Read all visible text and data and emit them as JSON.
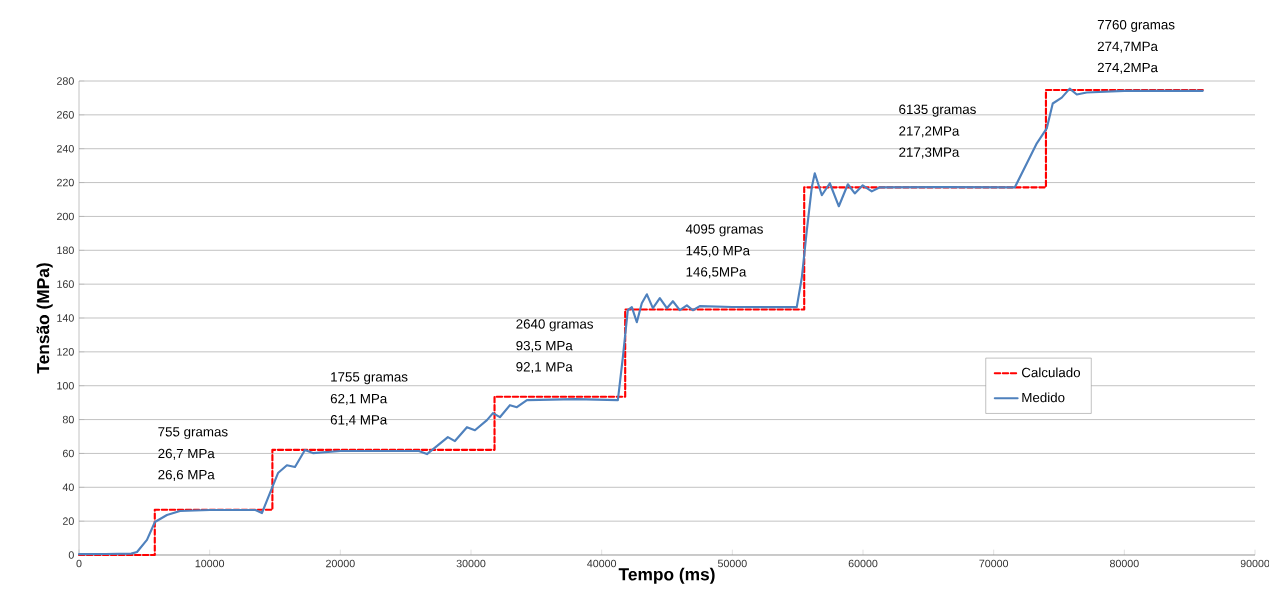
{
  "chart_data": {
    "type": "line",
    "xlabel": "Tempo (ms)",
    "ylabel": "Tensão (MPa)",
    "xlim": [
      0,
      90000
    ],
    "xticks": [
      0,
      10000,
      20000,
      30000,
      40000,
      50000,
      60000,
      70000,
      80000,
      90000
    ],
    "ylim": [
      0,
      280
    ],
    "yticks": [
      0,
      20,
      40,
      60,
      80,
      100,
      120,
      140,
      160,
      180,
      200,
      220,
      240,
      260,
      280
    ],
    "grid": "y",
    "legend": "right",
    "marker": "none",
    "series": [
      {
        "name": "Calculado",
        "type": "step",
        "color": "#ff0000",
        "line_style": "dashed",
        "x": [
          0,
          5800,
          14800,
          31800,
          41800,
          55500,
          74000,
          86000
        ],
        "values": [
          0,
          26.7,
          62.1,
          93.5,
          145.0,
          217.2,
          274.7,
          274.7
        ]
      },
      {
        "name": "Medido",
        "color": "#4f81bd",
        "line_style": "solid",
        "x": [
          0,
          2000,
          4000,
          4440,
          5200,
          5810,
          6730,
          7730,
          10000,
          13500,
          14000,
          14610,
          15230,
          15910,
          16530,
          17290,
          17900,
          20000,
          26000,
          26630,
          28230,
          28770,
          29690,
          30300,
          31220,
          31680,
          32210,
          32980,
          33510,
          34280,
          38000,
          41240,
          41620,
          42000,
          42310,
          42690,
          43070,
          43460,
          43920,
          44450,
          44990,
          45450,
          45980,
          46520,
          46980,
          47510,
          50000,
          54930,
          55320,
          55700,
          56080,
          56310,
          56850,
          57460,
          58150,
          58840,
          59370,
          59980,
          60670,
          61290,
          66000,
          71620,
          72530,
          73300,
          74060,
          74520,
          75210,
          75820,
          76360,
          77120,
          80000,
          86000
        ],
        "values": [
          0.5,
          0.6,
          0.8,
          1.8,
          8.9,
          19.5,
          23.6,
          26.0,
          26.6,
          26.6,
          24.8,
          36.6,
          48.4,
          53.0,
          52.0,
          62.0,
          60.2,
          61.4,
          61.4,
          59.6,
          69.6,
          67.3,
          75.5,
          73.7,
          79.7,
          83.8,
          81.4,
          88.5,
          87.3,
          91.5,
          92.1,
          91.5,
          116.8,
          144.6,
          146.4,
          137.5,
          148.7,
          154.0,
          145.8,
          151.7,
          145.8,
          149.9,
          144.6,
          147.5,
          144.6,
          147.0,
          146.5,
          146.4,
          164.0,
          191.8,
          217.2,
          225.5,
          212.5,
          219.6,
          206.0,
          219.0,
          213.6,
          218.4,
          214.8,
          217.2,
          217.3,
          217.2,
          231.3,
          243.2,
          252.0,
          266.7,
          270.2,
          275.5,
          272.0,
          273.2,
          274.2,
          274.2
        ]
      }
    ],
    "annotations": [
      "755 gramas",
      "26,7 MPa",
      "26,6 MPa",
      "1755 gramas",
      "62,1 MPa",
      "61,4 MPa",
      "2640 gramas",
      "93,5 MPa",
      "92,1 MPa",
      "4095 gramas",
      "145,0 MPa",
      "146,5MPa",
      "6135 gramas",
      "217,2MPa",
      "217,3MPa",
      "7760 gramas",
      "274,7MPa",
      "274,2MPa"
    ]
  }
}
